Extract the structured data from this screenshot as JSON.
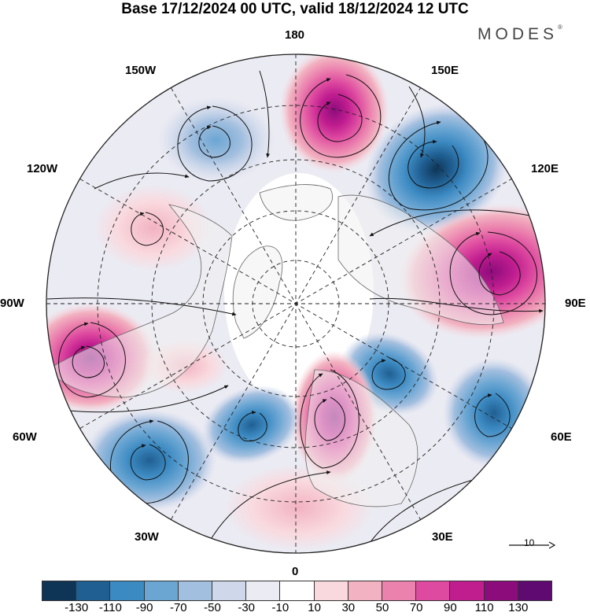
{
  "header": {
    "title": "Base 17/12/2024 00 UTC, valid 18/12/2024 12 UTC",
    "brand": "MODES",
    "brand_mark": "®"
  },
  "map": {
    "projection": "north-polar-stereographic",
    "longitude_labels": {
      "top": "180",
      "top_left": "150W",
      "top_right": "150E",
      "upper_left": "120W",
      "upper_right": "120E",
      "left": "90W",
      "right": "90E",
      "lower_left": "60W",
      "lower_right": "60E",
      "bottom_left": "30W",
      "bottom_right": "30E",
      "bottom": "0"
    },
    "anomaly_centers": [
      {
        "lon": "180",
        "sign": "positive",
        "max_class": "90"
      },
      {
        "lon": "135E",
        "sign": "negative",
        "max_class": "-130"
      },
      {
        "lon": "100E",
        "sign": "positive",
        "max_class": "110"
      },
      {
        "lon": "55E",
        "sign": "negative",
        "max_class": "-90"
      },
      {
        "lon": "40E",
        "sign": "negative",
        "max_class": "-90"
      },
      {
        "lon": "10E",
        "sign": "positive",
        "max_class": "110"
      },
      {
        "lon": "30W",
        "sign": "negative",
        "max_class": "-90"
      },
      {
        "lon": "50W",
        "sign": "negative",
        "max_class": "-90"
      },
      {
        "lon": "80W",
        "sign": "positive",
        "max_class": "110"
      },
      {
        "lon": "130W",
        "sign": "positive",
        "max_class": "30"
      },
      {
        "lon": "150W",
        "sign": "negative",
        "max_class": "-70"
      }
    ],
    "wind_reference": "10"
  },
  "legend": {
    "labels": [
      "-130",
      "-110",
      "-90",
      "-70",
      "-50",
      "-30",
      "-10",
      "10",
      "30",
      "50",
      "70",
      "90",
      "110",
      "130"
    ],
    "colors": [
      "#0e3556",
      "#205f92",
      "#3c8ac2",
      "#6ba6d3",
      "#a3bfdf",
      "#cfd7ea",
      "#ebebf3",
      "#ffffff",
      "#f9d9de",
      "#f2b2c1",
      "#eb82ae",
      "#de4aa0",
      "#c01d8f",
      "#8c0c7c",
      "#5f0a70"
    ]
  },
  "colors": {
    "land_outline": "#666666",
    "land_fill": "#f0f0f0",
    "streamline": "#111111",
    "grid": "#222222"
  }
}
